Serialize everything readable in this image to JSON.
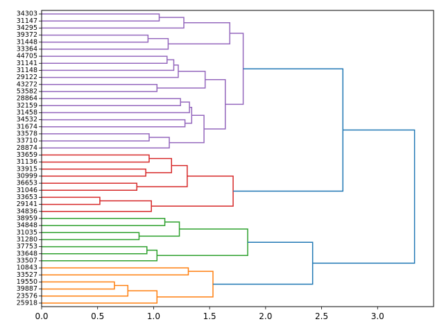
{
  "chart_data": {
    "type": "dendrogram",
    "orientation": "horizontal",
    "title": "",
    "xlabel": "",
    "ylabel": "",
    "xlim": [
      0,
      3.5
    ],
    "xticks": [
      0,
      0.5,
      1,
      1.5,
      2,
      2.5,
      3
    ],
    "xtick_labels": [
      "0.0",
      "0.5",
      "1.0",
      "1.5",
      "2.0",
      "2.5",
      "3.0"
    ],
    "leaves": [
      "34303",
      "31147",
      "34295",
      "39372",
      "31448",
      "33364",
      "44705",
      "31141",
      "31148",
      "29122",
      "43272",
      "53582",
      "28864",
      "32159",
      "31458",
      "34532",
      "31674",
      "33578",
      "33710",
      "28874",
      "33659",
      "31136",
      "33915",
      "30999",
      "36653",
      "31046",
      "33653",
      "29141",
      "34836",
      "38959",
      "34848",
      "31035",
      "31280",
      "37753",
      "33648",
      "33507",
      "10843",
      "33527",
      "19550",
      "39887",
      "23576",
      "25918"
    ],
    "colors": {
      "purple": "#9467bd",
      "red": "#d62728",
      "green": "#2ca02c",
      "orange": "#ff7f0e",
      "blue": "#1f77b4"
    },
    "links": [
      {
        "left": 0,
        "right": 1,
        "height": 1.05,
        "color": "purple"
      },
      {
        "left": "L1",
        "right": 2,
        "height": 1.27,
        "color": "purple"
      },
      {
        "left": 3,
        "right": 4,
        "height": 0.95,
        "color": "purple"
      },
      {
        "left": "L3",
        "right": 5,
        "height": 1.13,
        "color": "purple"
      },
      {
        "left": "L2",
        "right": "L4",
        "height": 1.68,
        "color": "purple"
      },
      {
        "left": 6,
        "right": 7,
        "height": 1.12,
        "color": "purple"
      },
      {
        "left": "L6",
        "right": 8,
        "height": 1.18,
        "color": "purple"
      },
      {
        "left": "L7",
        "right": 9,
        "height": 1.22,
        "color": "purple"
      },
      {
        "left": 10,
        "right": 11,
        "height": 1.03,
        "color": "purple"
      },
      {
        "left": "L8",
        "right": "L9",
        "height": 1.46,
        "color": "purple"
      },
      {
        "left": 12,
        "right": 13,
        "height": 1.24,
        "color": "purple"
      },
      {
        "left": "L11",
        "right": 14,
        "height": 1.32,
        "color": "purple"
      },
      {
        "left": 15,
        "right": 16,
        "height": 1.28,
        "color": "purple"
      },
      {
        "left": "L12",
        "right": "L13",
        "height": 1.34,
        "color": "purple"
      },
      {
        "left": 17,
        "right": 18,
        "height": 0.96,
        "color": "purple"
      },
      {
        "left": "L15",
        "right": 19,
        "height": 1.14,
        "color": "purple"
      },
      {
        "left": "L14",
        "right": "L16",
        "height": 1.45,
        "color": "purple"
      },
      {
        "left": "L10",
        "right": "L17",
        "height": 1.64,
        "color": "purple"
      },
      {
        "left": "L5",
        "right": "L18",
        "height": 1.8,
        "color": "purple"
      },
      {
        "left": 20,
        "right": 21,
        "height": 0.96,
        "color": "red"
      },
      {
        "left": 22,
        "right": 23,
        "height": 0.93,
        "color": "red"
      },
      {
        "left": "L20",
        "right": "L21",
        "height": 1.16,
        "color": "red"
      },
      {
        "left": 24,
        "right": 25,
        "height": 0.85,
        "color": "red"
      },
      {
        "left": "L22",
        "right": "L23",
        "height": 1.3,
        "color": "red"
      },
      {
        "left": 26,
        "right": 27,
        "height": 0.52,
        "color": "red"
      },
      {
        "left": "L25",
        "right": 28,
        "height": 0.98,
        "color": "red"
      },
      {
        "left": "L24",
        "right": "L26",
        "height": 1.71,
        "color": "red"
      },
      {
        "left": "L19",
        "right": "L27",
        "height": 2.69,
        "color": "blue"
      },
      {
        "left": 29,
        "right": 30,
        "height": 1.1,
        "color": "green"
      },
      {
        "left": 31,
        "right": 32,
        "height": 0.87,
        "color": "green"
      },
      {
        "left": "L29",
        "right": "L30",
        "height": 1.23,
        "color": "green"
      },
      {
        "left": 33,
        "right": 34,
        "height": 0.94,
        "color": "green"
      },
      {
        "left": "L32",
        "right": 35,
        "height": 1.03,
        "color": "green"
      },
      {
        "left": "L31",
        "right": "L33",
        "height": 1.84,
        "color": "green"
      },
      {
        "left": 36,
        "right": 37,
        "height": 1.31,
        "color": "orange"
      },
      {
        "left": 38,
        "right": 39,
        "height": 0.65,
        "color": "orange"
      },
      {
        "left": "L36",
        "right": 40,
        "height": 0.77,
        "color": "orange"
      },
      {
        "left": "L37",
        "right": 41,
        "height": 1.03,
        "color": "orange"
      },
      {
        "left": "L35",
        "right": "L38",
        "height": 1.53,
        "color": "orange"
      },
      {
        "left": "L34",
        "right": "L39",
        "height": 2.42,
        "color": "blue"
      },
      {
        "left": "L28",
        "right": "L40",
        "height": 3.33,
        "color": "blue"
      }
    ]
  }
}
